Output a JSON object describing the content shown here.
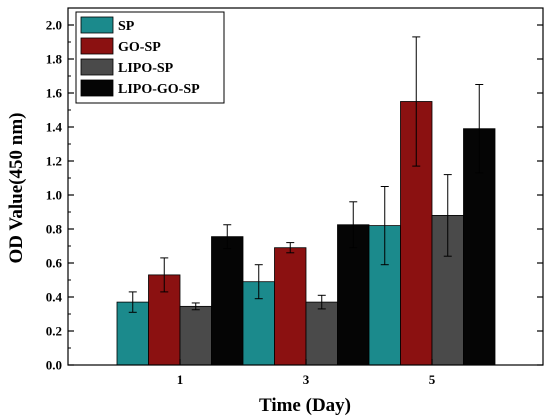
{
  "chart_data": {
    "type": "bar",
    "xlabel": "Time (Day)",
    "ylabel": "OD Value(450 nm)",
    "ylim": [
      0,
      2.1
    ],
    "yticks": [
      "0.0",
      "0.2",
      "0.4",
      "0.6",
      "0.8",
      "1.0",
      "1.2",
      "1.4",
      "1.6",
      "1.8",
      "2.0"
    ],
    "categories": [
      "1",
      "3",
      "5"
    ],
    "legend_position": "top-left",
    "grid": false,
    "series": [
      {
        "name": "SP",
        "color": "#1b8a8c",
        "values": [
          0.37,
          0.49,
          0.82
        ],
        "errors": [
          0.06,
          0.1,
          0.23
        ]
      },
      {
        "name": "GO-SP",
        "color": "#8b1111",
        "values": [
          0.53,
          0.69,
          1.55
        ],
        "errors": [
          0.1,
          0.03,
          0.38
        ]
      },
      {
        "name": "LIPO-SP",
        "color": "#4a4a4a",
        "values": [
          0.345,
          0.37,
          0.88
        ],
        "errors": [
          0.02,
          0.04,
          0.24
        ]
      },
      {
        "name": "LIPO-GO-SP",
        "color": "#050505",
        "values": [
          0.755,
          0.825,
          1.39
        ],
        "errors": [
          0.07,
          0.135,
          0.26
        ]
      }
    ]
  }
}
